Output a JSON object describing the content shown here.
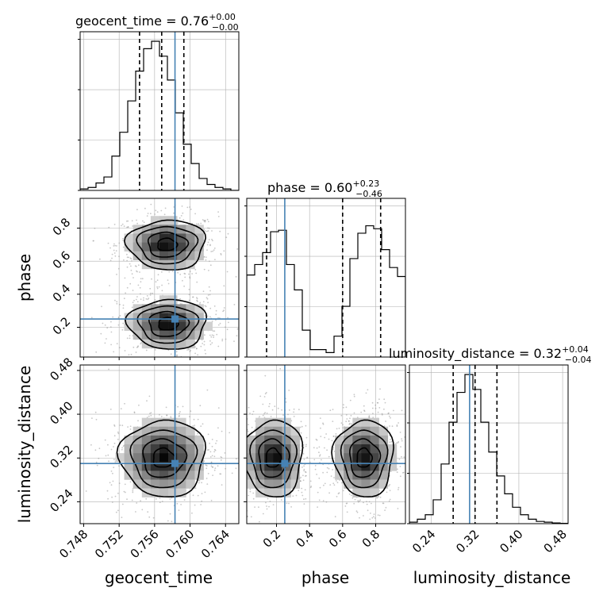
{
  "chart_data": {
    "type": "corner",
    "parameters": [
      "geocent_time",
      "phase",
      "luminosity_distance"
    ],
    "truths": {
      "geocent_time": 0.7583,
      "phase": 0.25,
      "luminosity_distance": 0.31
    },
    "titles": [
      {
        "param": "geocent_time",
        "text": "geocent_time = 0.76",
        "sup": "+0.00",
        "sub": "−0.00"
      },
      {
        "param": "phase",
        "text": "phase = 0.60",
        "sup": "+0.23",
        "sub": "−0.46"
      },
      {
        "param": "luminosity_distance",
        "text": "luminosity_distance = 0.32",
        "sup": "+0.04",
        "sub": "−0.04"
      }
    ],
    "axis_labels": {
      "geocent_time": "geocent_time",
      "phase": "phase",
      "luminosity_distance": "luminosity_distance"
    },
    "ranges": {
      "geocent_time": [
        0.7476,
        0.7655
      ],
      "phase": [
        0.02,
        0.98
      ],
      "luminosity_distance": [
        0.2,
        0.49
      ]
    },
    "ticks": {
      "geocent_time": [
        "0.748",
        "0.752",
        "0.756",
        "0.760",
        "0.764"
      ],
      "phase_y": [
        "0.2",
        "0.4",
        "0.6",
        "0.8"
      ],
      "phase_x": [
        "0.2",
        "0.4",
        "0.6",
        "0.8"
      ],
      "luminosity_distance": [
        "0.24",
        "0.32",
        "0.40",
        "0.48"
      ]
    },
    "histograms": {
      "geocent_time": {
        "quantiles": [
          0.7543,
          0.7568,
          0.7593
        ],
        "values": [
          0.01,
          0.02,
          0.05,
          0.09,
          0.23,
          0.39,
          0.6,
          0.8,
          0.95,
          1.0,
          0.9,
          0.74,
          0.52,
          0.31,
          0.18,
          0.08,
          0.04,
          0.02,
          0.01,
          0.0
        ]
      },
      "phase": {
        "quantiles": [
          0.14,
          0.6,
          0.83
        ],
        "values": [
          0.55,
          0.62,
          0.7,
          0.84,
          0.85,
          0.62,
          0.45,
          0.18,
          0.05,
          0.05,
          0.03,
          0.14,
          0.34,
          0.66,
          0.83,
          0.88,
          0.86,
          0.72,
          0.6,
          0.54
        ]
      },
      "luminosity_distance": {
        "quantiles": [
          0.28,
          0.32,
          0.36
        ],
        "values": [
          0.01,
          0.03,
          0.06,
          0.16,
          0.4,
          0.68,
          0.88,
          1.0,
          0.9,
          0.68,
          0.48,
          0.32,
          0.2,
          0.11,
          0.06,
          0.03,
          0.015,
          0.01,
          0.005,
          0.002
        ]
      }
    },
    "density_modes": {
      "phase_vs_geocent_time": [
        {
          "cx": 0.7574,
          "cy": 0.7,
          "sx": 0.0022,
          "sy": 0.075
        },
        {
          "cx": 0.7575,
          "cy": 0.22,
          "sx": 0.0022,
          "sy": 0.075
        }
      ],
      "luminosity_distance_vs_geocent_time": [
        {
          "cx": 0.757,
          "cy": 0.32,
          "sx": 0.0024,
          "sy": 0.035
        }
      ],
      "luminosity_distance_vs_phase": [
        {
          "cx": 0.18,
          "cy": 0.32,
          "sx": 0.09,
          "sy": 0.035
        },
        {
          "cx": 0.73,
          "cy": 0.32,
          "sx": 0.09,
          "sy": 0.035
        }
      ]
    },
    "colors": {
      "truth": "#4682b4",
      "hist": "#000000",
      "grid": "#b0b0b0"
    }
  }
}
